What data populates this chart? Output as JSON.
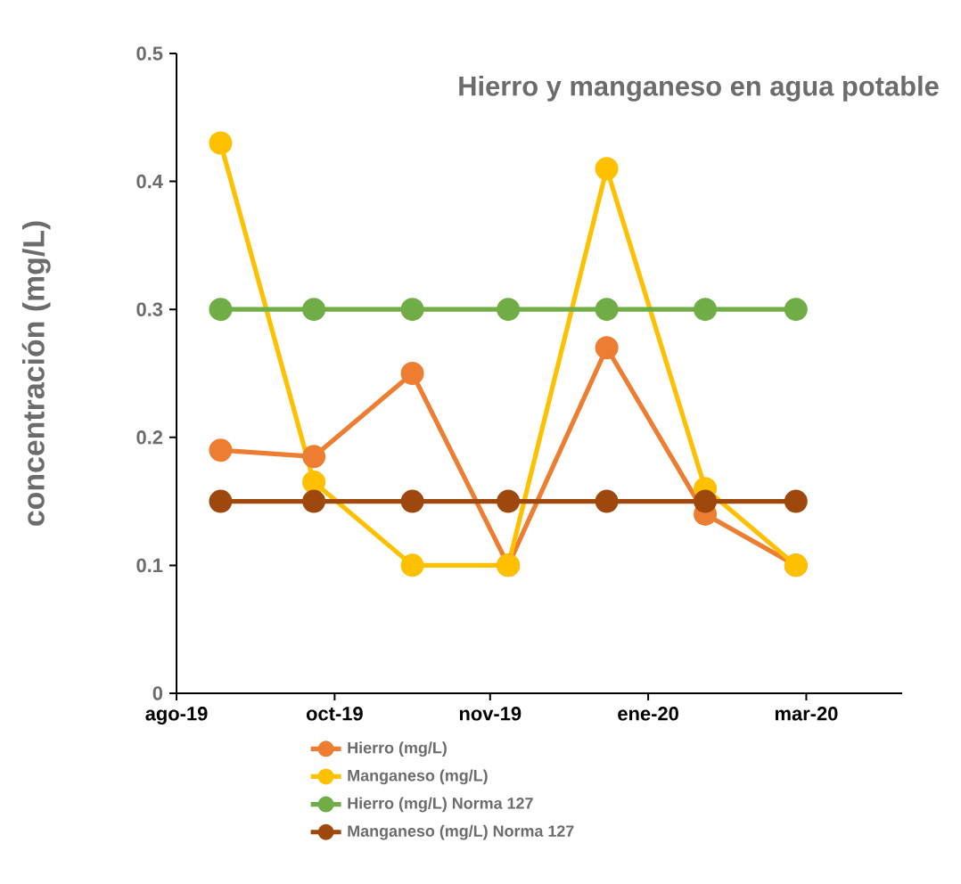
{
  "chart_data": {
    "type": "line",
    "title": "Hierro y manganeso en agua potable",
    "ylabel": "concentración (mg/L)",
    "x": [
      "2019-08-18",
      "2019-09-23",
      "2019-10-31",
      "2019-12-07",
      "2020-01-14",
      "2020-02-21",
      "2020-03-27"
    ],
    "xlim": [
      "2019-08-01",
      "2020-05-07"
    ],
    "xticks": [
      {
        "value": "2019-08-01",
        "label": "ago-19"
      },
      {
        "value": "2019-10-01",
        "label": "oct-19"
      },
      {
        "value": "2019-11-30",
        "label": "nov-19"
      },
      {
        "value": "2020-01-30",
        "label": "ene-20"
      },
      {
        "value": "2020-03-31",
        "label": "mar-20"
      }
    ],
    "ylim": [
      0,
      0.5
    ],
    "yticks": [
      0,
      0.1,
      0.2,
      0.3,
      0.4,
      0.5
    ],
    "series": [
      {
        "name": "Hierro (mg/L)",
        "color": "#ed7d31",
        "values": [
          0.19,
          0.185,
          0.25,
          0.1,
          0.27,
          0.14,
          0.1
        ]
      },
      {
        "name": "Manganeso (mg/L)",
        "color": "#ffc000",
        "values": [
          0.43,
          0.165,
          0.1,
          0.1,
          0.41,
          0.16,
          0.1
        ]
      },
      {
        "name": "Hierro (mg/L) Norma 127",
        "color": "#70ad47",
        "values": [
          0.3,
          0.3,
          0.3,
          0.3,
          0.3,
          0.3,
          0.3
        ]
      },
      {
        "name": "Manganeso (mg/L) Norma 127",
        "color": "#9e480e",
        "values": [
          0.15,
          0.15,
          0.15,
          0.15,
          0.15,
          0.15,
          0.15
        ]
      }
    ],
    "marker": "circle",
    "line_style": "solid",
    "legend": "bottom",
    "grid": false
  }
}
